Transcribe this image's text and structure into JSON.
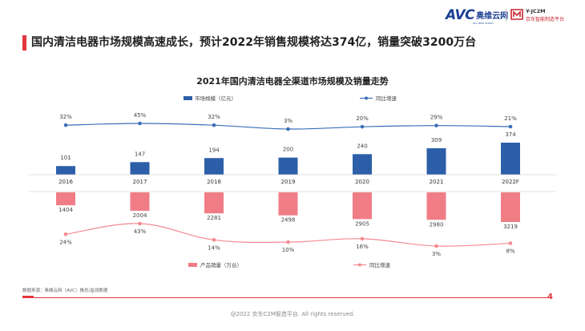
{
  "header": {
    "avc_logo_text": "AVC",
    "avc_logo_cn": "奥维云网",
    "avc_logo_sub": "ALL VIEW CLOUD",
    "jc_logo_t1": "Y-JC2M",
    "jc_logo_t2": "京东智能制造平台"
  },
  "main_title": "国内清洁电器市场规模高速成长，预计2022年销售规模将达374亿，销量突破3200万台",
  "footer": {
    "source": "数据来源：奥维云网（AVC）推总/监测数据",
    "page_number": "4",
    "copyright": "@2022 京东C2M智造平台. All rights reserved."
  },
  "colors": {
    "accent_red": "#e2353c",
    "bar_blue": "#2c5fa8",
    "line_blue": "#3a6fb8",
    "bar_pink": "#f07d86",
    "line_pink": "#f48a92"
  },
  "chart_data": {
    "type": "bar",
    "title": "2021年国内清洁电器全渠道市场规模及销量走势",
    "categories": [
      "2016",
      "2017",
      "2018",
      "2019",
      "2020",
      "2021",
      "2022F"
    ],
    "top_panel": {
      "legend_bar": "市场规模（亿元）",
      "legend_line": "同比增速",
      "bar_values": [
        101,
        147,
        194,
        200,
        240,
        309,
        374
      ],
      "growth_labels": [
        "32%",
        "45%",
        "32%",
        "3%",
        "20%",
        "29%",
        "21%"
      ],
      "growth_values": [
        32,
        45,
        32,
        3,
        20,
        29,
        21
      ]
    },
    "bottom_panel": {
      "legend_bar": "产品销量（万台）",
      "legend_line": "同比增速",
      "bar_values": [
        1404,
        2004,
        2281,
        2498,
        2905,
        2980,
        3219
      ],
      "growth_labels": [
        "24%",
        "43%",
        "14%",
        "10%",
        "16%",
        "3%",
        "8%"
      ],
      "growth_values": [
        24,
        43,
        14,
        10,
        16,
        3,
        8
      ]
    },
    "legend_position": "top",
    "grid": false
  }
}
